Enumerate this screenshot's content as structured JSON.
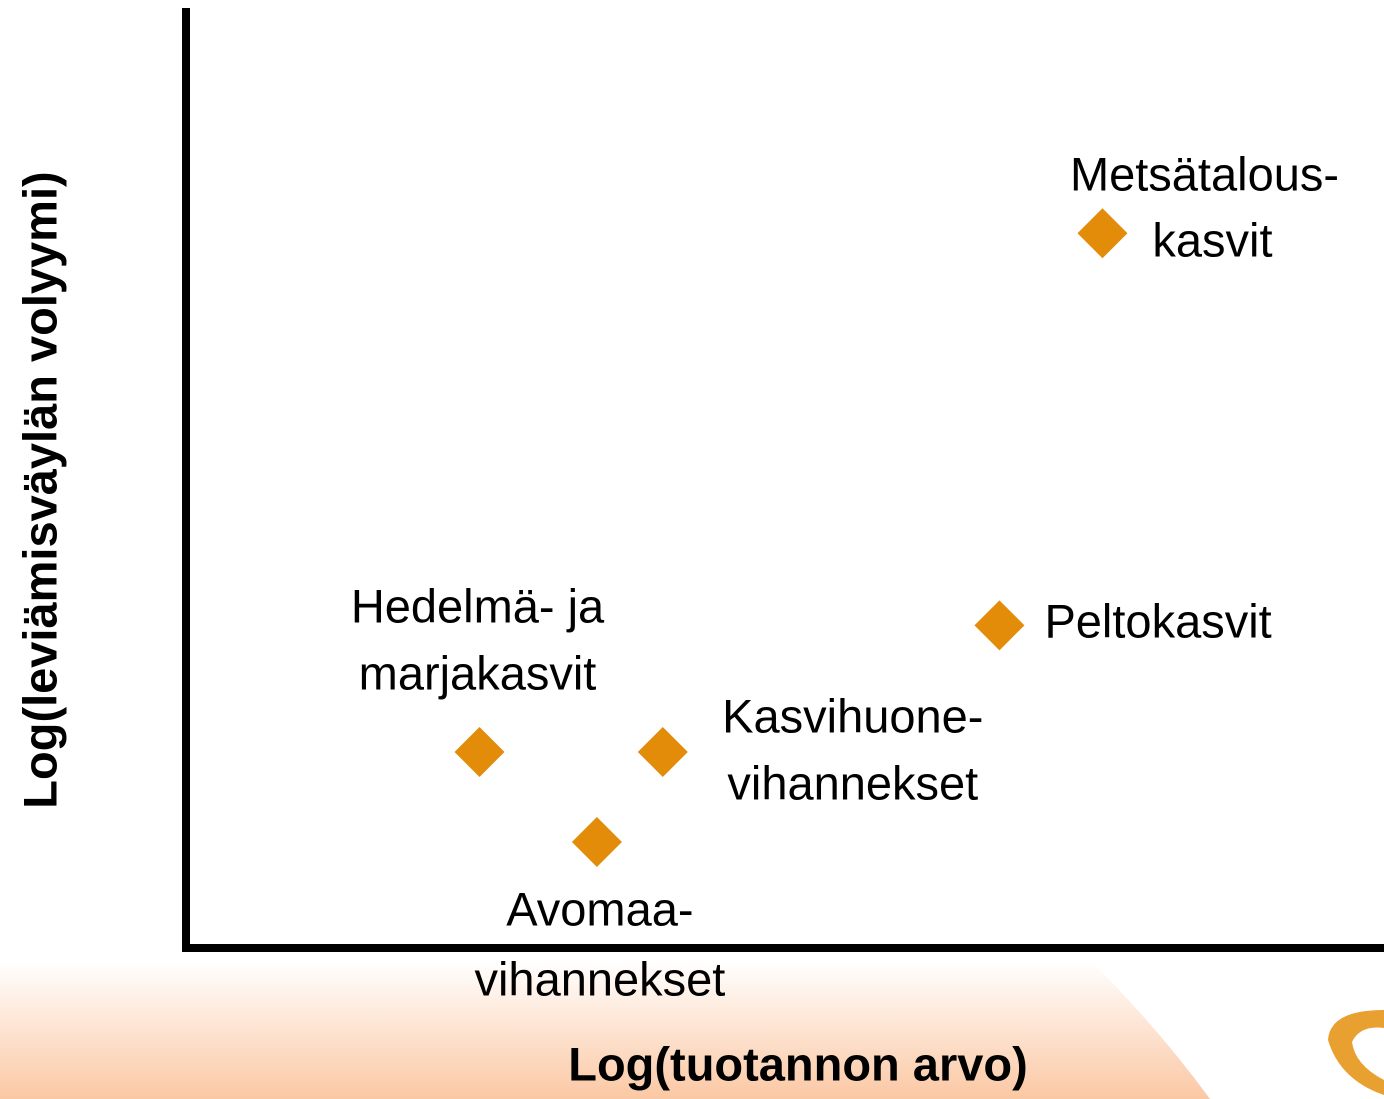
{
  "chart_data": {
    "type": "scatter",
    "xlabel": "Log(tuotannon arvo)",
    "ylabel": "Log(leviämisväylän volyymi)",
    "xlim": [
      0,
      10
    ],
    "ylim": [
      0,
      10
    ],
    "color": "#e38c0a",
    "series": [
      {
        "x": [
          7.65,
          6.79,
          2.45,
          3.98,
          3.43
        ],
        "values": [
          7.62,
          3.44,
          2.09,
          2.09,
          1.13
        ],
        "labels": [
          [
            "Metsätalous-",
            "kasvit"
          ],
          [
            "Peltokasvit"
          ],
          [
            "Hedelmä- ja",
            "marjakasvit"
          ],
          [
            "Kasvihuone-",
            "vihannekset"
          ],
          [
            "Avomaa-",
            "vihannekset"
          ]
        ]
      }
    ]
  }
}
